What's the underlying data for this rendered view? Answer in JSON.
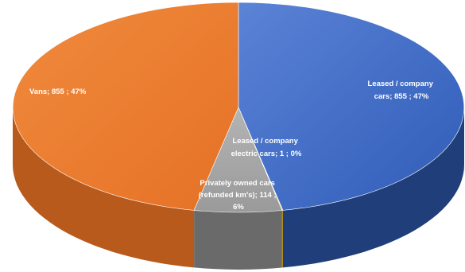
{
  "chart_data": {
    "type": "pie",
    "style": "3d",
    "title": "",
    "legend": "none",
    "slices": [
      {
        "label_lines": [
          "Leased / company",
          "cars;  855 ; 47%"
        ],
        "name": "Leased / company cars",
        "value": 855,
        "percent": "47%",
        "color": "#4472c4"
      },
      {
        "label_lines": [
          "Leased / company",
          "electric cars;  1 ; 0%"
        ],
        "name": "Leased / company electric cars",
        "value": 1,
        "percent": "0%",
        "color": "#ffc000"
      },
      {
        "label_lines": [
          "Privately owned cars",
          "(refunded km's);  114 ;",
          "6%"
        ],
        "name": "Privately owned cars (refunded km's)",
        "value": 114,
        "percent": "6%",
        "color": "#a5a5a5"
      },
      {
        "label_lines": [
          "Vans;  855 ; 47%"
        ],
        "name": "Vans",
        "value": 855,
        "percent": "47%",
        "color": "#ed7d31"
      }
    ]
  }
}
